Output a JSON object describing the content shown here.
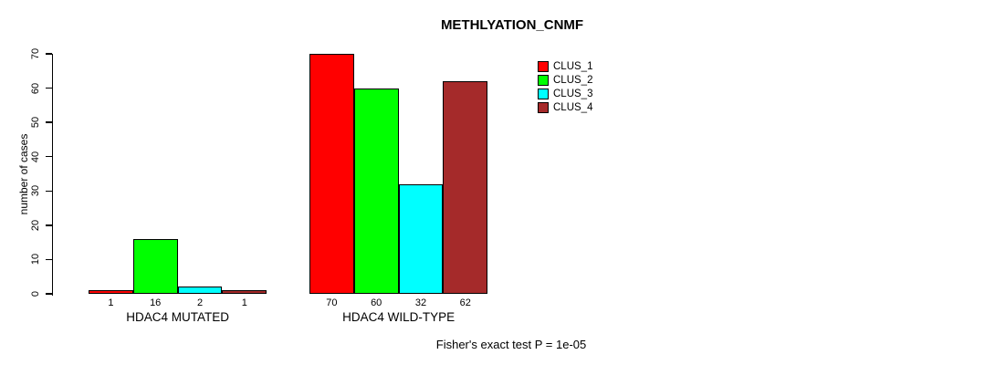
{
  "chart_data": {
    "type": "bar",
    "title": "METHLYATION_CNMF",
    "ylabel": "number of cases",
    "xlabel": "",
    "ylim": [
      0,
      70
    ],
    "yticks": [
      0,
      10,
      20,
      30,
      40,
      50,
      60,
      70
    ],
    "categories": [
      "HDAC4 MUTATED",
      "HDAC4 WILD-TYPE"
    ],
    "series": [
      {
        "name": "CLUS_1",
        "color": "#FF0000",
        "values": [
          1,
          70
        ]
      },
      {
        "name": "CLUS_2",
        "color": "#00FF00",
        "values": [
          16,
          60
        ]
      },
      {
        "name": "CLUS_3",
        "color": "#00FFFF",
        "values": [
          2,
          32
        ]
      },
      {
        "name": "CLUS_4",
        "color": "#A52A2A",
        "values": [
          1,
          62
        ]
      }
    ],
    "bar_value_labels": [
      [
        "1",
        "16",
        "2",
        "1"
      ],
      [
        "70",
        "60",
        "32",
        "62"
      ]
    ],
    "legend": {
      "position": "top-right",
      "entries": [
        "CLUS_1",
        "CLUS_2",
        "CLUS_3",
        "CLUS_4"
      ]
    },
    "grid": false,
    "annotation": "Fisher's exact test P = 1e-05",
    "axis_color": "#000000",
    "background_color": "#FFFFFF"
  }
}
